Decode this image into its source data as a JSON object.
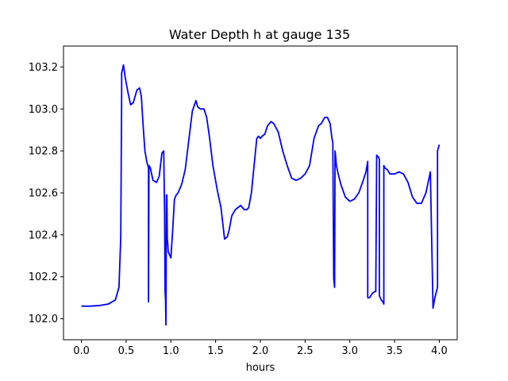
{
  "chart_data": {
    "type": "line",
    "title": "Water Depth h at gauge 135",
    "xlabel": "hours",
    "ylabel": "",
    "xlim": [
      -0.2,
      4.2
    ],
    "ylim": [
      101.9,
      103.3
    ],
    "xticks": [
      0.0,
      0.5,
      1.0,
      1.5,
      2.0,
      2.5,
      3.0,
      3.5,
      4.0
    ],
    "xtick_labels": [
      "0.0",
      "0.5",
      "1.0",
      "1.5",
      "2.0",
      "2.5",
      "3.0",
      "3.5",
      "4.0"
    ],
    "yticks": [
      102.0,
      102.2,
      102.4,
      102.6,
      102.8,
      103.0,
      103.2
    ],
    "ytick_labels": [
      "102.0",
      "102.2",
      "102.4",
      "102.6",
      "102.8",
      "103.0",
      "103.2"
    ],
    "grid": false,
    "series": [
      {
        "color": "#0000ff",
        "x": [
          0.0,
          0.1,
          0.2,
          0.3,
          0.38,
          0.42,
          0.44,
          0.45,
          0.45,
          0.47,
          0.49,
          0.52,
          0.55,
          0.58,
          0.62,
          0.65,
          0.67,
          0.69,
          0.71,
          0.73,
          0.75,
          0.75,
          0.755,
          0.77,
          0.8,
          0.84,
          0.87,
          0.9,
          0.92,
          0.93,
          0.935,
          0.94,
          0.945,
          0.95,
          0.955,
          0.96,
          0.965,
          0.97,
          0.99,
          1.0,
          1.02,
          1.04,
          1.06,
          1.08,
          1.12,
          1.16,
          1.2,
          1.24,
          1.28,
          1.3,
          1.33,
          1.37,
          1.4,
          1.43,
          1.47,
          1.52,
          1.56,
          1.6,
          1.63,
          1.65,
          1.68,
          1.72,
          1.75,
          1.78,
          1.82,
          1.85,
          1.87,
          1.9,
          1.93,
          1.96,
          1.98,
          2.0,
          2.02,
          2.05,
          2.08,
          2.12,
          2.15,
          2.2,
          2.25,
          2.3,
          2.35,
          2.4,
          2.45,
          2.5,
          2.55,
          2.6,
          2.65,
          2.68,
          2.72,
          2.75,
          2.78,
          2.8,
          2.81,
          2.82,
          2.83,
          2.835,
          2.84,
          2.85,
          2.87,
          2.9,
          2.95,
          3.0,
          3.05,
          3.1,
          3.15,
          3.18,
          3.2,
          3.2,
          3.22,
          3.25,
          3.28,
          3.29,
          3.3,
          3.32,
          3.33,
          3.33,
          3.35,
          3.37,
          3.38,
          3.38,
          3.39,
          3.42,
          3.45,
          3.48,
          3.5,
          3.55,
          3.6,
          3.65,
          3.7,
          3.75,
          3.8,
          3.85,
          3.9,
          3.93,
          3.93,
          3.95,
          3.98,
          3.98,
          4.0
        ],
        "y": [
          102.06,
          102.06,
          102.063,
          102.07,
          102.09,
          102.15,
          102.39,
          103.08,
          103.17,
          103.21,
          103.15,
          103.08,
          103.02,
          103.03,
          103.09,
          103.1,
          103.06,
          102.92,
          102.8,
          102.75,
          102.72,
          102.08,
          102.73,
          102.72,
          102.66,
          102.65,
          102.68,
          102.79,
          102.8,
          102.5,
          102.13,
          102.1,
          101.97,
          102.59,
          102.59,
          102.38,
          102.36,
          102.32,
          102.3,
          102.29,
          102.42,
          102.57,
          102.59,
          102.6,
          102.64,
          102.71,
          102.85,
          102.99,
          103.04,
          103.01,
          103.0,
          103.0,
          102.96,
          102.87,
          102.73,
          102.61,
          102.53,
          102.38,
          102.39,
          102.42,
          102.49,
          102.52,
          102.53,
          102.54,
          102.52,
          102.52,
          102.53,
          102.6,
          102.73,
          102.86,
          102.87,
          102.86,
          102.87,
          102.88,
          102.92,
          102.94,
          102.93,
          102.89,
          102.8,
          102.73,
          102.67,
          102.66,
          102.67,
          102.69,
          102.73,
          102.86,
          102.92,
          102.93,
          102.96,
          102.96,
          102.93,
          102.86,
          102.84,
          102.19,
          102.15,
          102.8,
          102.78,
          102.73,
          102.69,
          102.64,
          102.58,
          102.56,
          102.57,
          102.6,
          102.66,
          102.7,
          102.75,
          102.1,
          102.1,
          102.12,
          102.13,
          102.13,
          102.78,
          102.77,
          102.76,
          102.11,
          102.09,
          102.08,
          102.07,
          102.73,
          102.72,
          102.71,
          102.69,
          102.69,
          102.69,
          102.7,
          102.69,
          102.65,
          102.58,
          102.55,
          102.55,
          102.6,
          102.7,
          102.05,
          102.05,
          102.1,
          102.15,
          102.8,
          102.83
        ]
      }
    ]
  }
}
